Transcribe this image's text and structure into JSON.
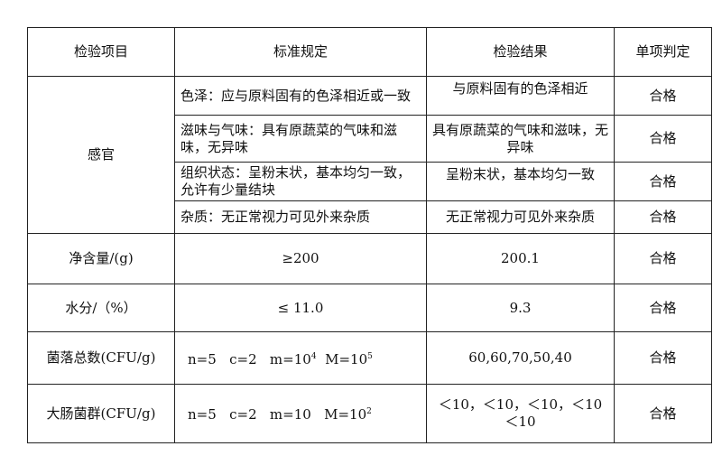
{
  "headers": [
    "检验项目",
    "标准规定",
    "检验结果",
    "单项判定"
  ],
  "sensory": {
    "item": "感官",
    "rows": [
      {
        "standard": "色泽：应与原料固有的色泽相近或一致",
        "result": "与原料固有的色泽相近",
        "verdict": "合格"
      },
      {
        "standard": "滋味与气味：具有原蔬菜的气味和滋味，无异味",
        "result": "具有原蔬菜的气味和滋味，无异味",
        "verdict": "合格"
      },
      {
        "standard": "组织状态：呈粉末状，基本均匀一致，允许有少量结块",
        "result": "呈粉末状，基本均匀一致",
        "verdict": "合格"
      },
      {
        "standard": "杂质：无正常视力可见外来杂质",
        "result": "无正常视力可见外来杂质",
        "verdict": "合格"
      }
    ]
  },
  "rows": [
    {
      "item": "净含量/(g)",
      "standard": "≥200",
      "result": "200.1",
      "verdict": "合格"
    },
    {
      "item": "水分/（%）",
      "standard": "≤ 11.0",
      "result": "9.3",
      "verdict": "合格"
    },
    {
      "item": "菌落总数(CFU/g)",
      "standard": {
        "n": "n=5",
        "c": "c=2",
        "m": "m=10",
        "m_exp": "4",
        "M": "M=10",
        "M_exp": "5"
      },
      "result": "60,60,70,50,40",
      "verdict": "合格"
    },
    {
      "item": "大肠菌群(CFU/g)",
      "standard": {
        "n": "n=5",
        "c": "c=2",
        "m": "m=10",
        "M": "M=10",
        "M_exp": "2"
      },
      "result": "＜10，＜10，＜10，＜10 ＜10",
      "verdict": "合格"
    }
  ]
}
